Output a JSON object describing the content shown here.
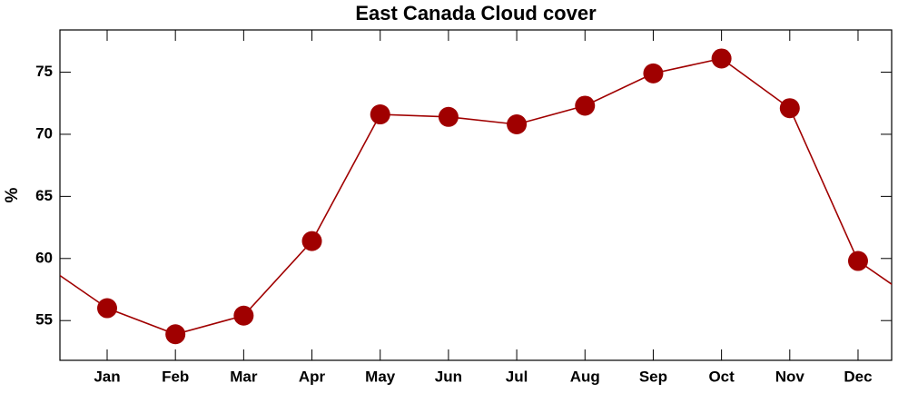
{
  "chart_data": {
    "type": "line",
    "title": "East Canada Cloud cover",
    "y_label": "%",
    "categories": [
      "Jan",
      "Feb",
      "Mar",
      "Apr",
      "May",
      "Jun",
      "Jul",
      "Aug",
      "Sep",
      "Oct",
      "Nov",
      "Dec"
    ],
    "values": [
      56.0,
      53.9,
      55.4,
      61.4,
      71.6,
      71.4,
      70.8,
      72.3,
      74.9,
      76.1,
      72.1,
      59.8
    ],
    "color": "#a00000",
    "ylim": [
      51.8,
      78.4
    ],
    "yticks": [
      55,
      60,
      65,
      70,
      75
    ]
  }
}
